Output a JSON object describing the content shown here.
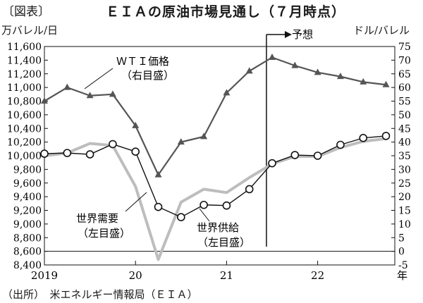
{
  "figure_label": "〔図表〕",
  "chart_data": {
    "type": "line",
    "title": "ＥＩＡの原油市場見通し（７月時点）",
    "left_axis": {
      "unit": "万バレル/日",
      "ylim": [
        8400,
        11600
      ],
      "ticks": [
        "8,400",
        "8,600",
        "8,800",
        "9,000",
        "9,200",
        "9,400",
        "9,600",
        "9,800",
        "10,000",
        "10,200",
        "10,400",
        "10,600",
        "10,800",
        "11,000",
        "11,200",
        "11,400",
        "11,600"
      ]
    },
    "right_axis": {
      "unit": "ドル/バレル",
      "ylim": [
        -5,
        75
      ],
      "ticks": [
        "-5",
        "0",
        "5",
        "10",
        "15",
        "20",
        "25",
        "30",
        "35",
        "40",
        "45",
        "50",
        "55",
        "60",
        "65",
        "70",
        "75"
      ]
    },
    "x_axis": {
      "categories": [
        "2019Q1",
        "2019Q2",
        "2019Q3",
        "2019Q4",
        "2020Q1",
        "2020Q2",
        "2020Q3",
        "2020Q4",
        "2021Q1",
        "2021Q2",
        "2021Q3",
        "2021Q4",
        "2022Q1",
        "2022Q2",
        "2022Q3",
        "2022Q4"
      ],
      "tick_labels": [
        {
          "text": "2019",
          "quarter_index": 0
        },
        {
          "text": "20",
          "quarter_index": 4
        },
        {
          "text": "21",
          "quarter_index": 8
        },
        {
          "text": "22",
          "quarter_index": 12
        }
      ],
      "unit_label": "年"
    },
    "forecast_start_quarter_index": 9.75,
    "forecast_label": "予想",
    "series": [
      {
        "name": "ＷＴＩ価格",
        "axis_note": "（右目盛）",
        "axis": "right",
        "color": "#555555",
        "marker": "triangle",
        "values": [
          55,
          60,
          57,
          57.5,
          46,
          28,
          40,
          42,
          58,
          66,
          71,
          68,
          65.5,
          64,
          62,
          61
        ]
      },
      {
        "name": "世界需要",
        "axis_note": "（左目盛）",
        "axis": "left",
        "color": "#bdbdbd",
        "marker": "none",
        "values": [
          10000,
          10040,
          10180,
          10150,
          9550,
          8480,
          9320,
          9510,
          9460,
          9680,
          9880,
          9990,
          9990,
          10120,
          10210,
          10250
        ]
      },
      {
        "name": "世界供給",
        "axis_note": "（左目盛）",
        "axis": "left",
        "color": "#111111",
        "marker": "circle",
        "values": [
          10030,
          10040,
          10020,
          10170,
          10060,
          9250,
          9100,
          9280,
          9270,
          9510,
          9890,
          10010,
          10000,
          10160,
          10260,
          10290
        ]
      }
    ],
    "zero_line_right_value": 0
  },
  "source": "（出所）　米エネルギー情報局（ＥＩＡ）"
}
